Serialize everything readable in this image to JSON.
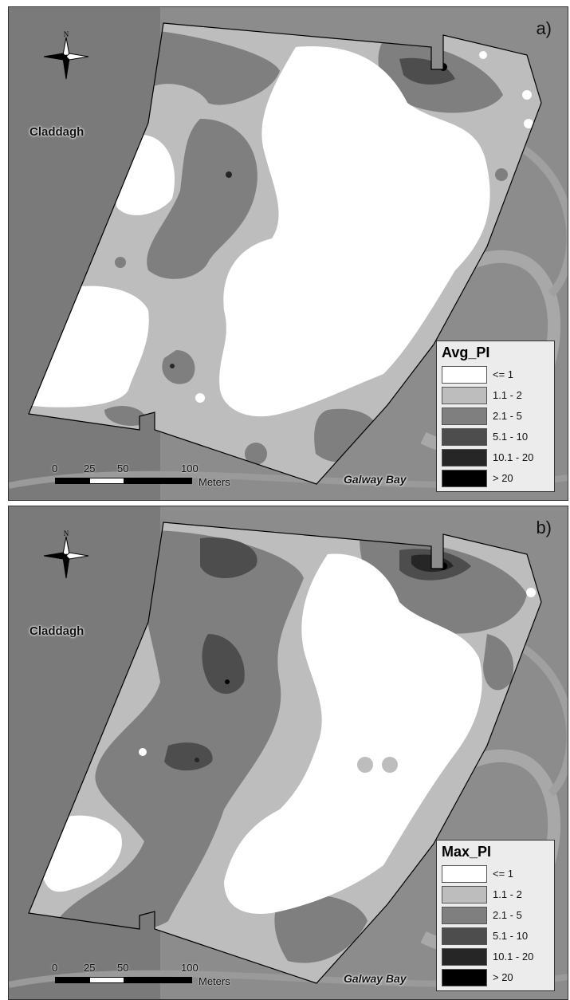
{
  "panels": [
    {
      "label": "a)",
      "place_left": "Claddagh",
      "place_right": "Galway Bay",
      "north_letter": "N",
      "scale": {
        "ticks": [
          "0",
          "25",
          "50",
          "100"
        ],
        "units": "Meters"
      },
      "legend": {
        "title": "Avg_PI",
        "classes": [
          {
            "label": "<= 1",
            "color": "#ffffff"
          },
          {
            "label": "1.1 - 2",
            "color": "#bdbdbd"
          },
          {
            "label": "2.1 - 5",
            "color": "#7f7f7f"
          },
          {
            "label": "5.1 - 10",
            "color": "#4d4d4d"
          },
          {
            "label": "10.1 - 20",
            "color": "#262626"
          },
          {
            "label": "> 20",
            "color": "#000000"
          }
        ]
      }
    },
    {
      "label": "b)",
      "place_left": "Claddagh",
      "place_right": "Galway Bay",
      "north_letter": "N",
      "scale": {
        "ticks": [
          "0",
          "25",
          "50",
          "100"
        ],
        "units": "Meters"
      },
      "legend": {
        "title": "Max_PI",
        "classes": [
          {
            "label": "<= 1",
            "color": "#ffffff"
          },
          {
            "label": "1.1 - 2",
            "color": "#bdbdbd"
          },
          {
            "label": "2.1 - 5",
            "color": "#7f7f7f"
          },
          {
            "label": "5.1 - 10",
            "color": "#4d4d4d"
          },
          {
            "label": "10.1 - 20",
            "color": "#262626"
          },
          {
            "label": "> 20",
            "color": "#000000"
          }
        ]
      }
    }
  ],
  "colors": {
    "background_imagery": "#8c8c8c",
    "boundary": "#000000"
  }
}
